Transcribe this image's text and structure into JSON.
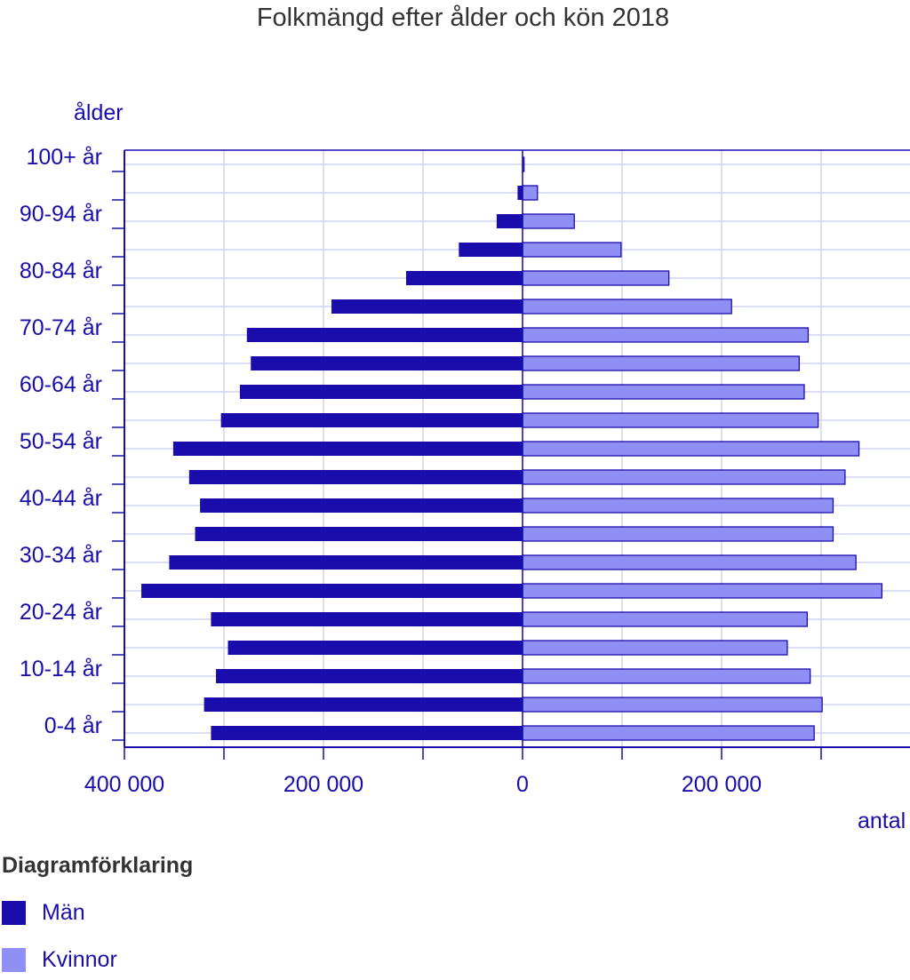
{
  "chart_data": {
    "type": "bar",
    "orientation": "horizontal-population-pyramid",
    "title": "Folkmängd efter ålder och kön 2018",
    "ylabel": "ålder",
    "xlabel": "antal",
    "categories": [
      "0-4 år",
      "5-9 år",
      "10-14 år",
      "15-19 år",
      "20-24 år",
      "25-29 år",
      "30-34 år",
      "35-39 år",
      "40-44 år",
      "45-49 år",
      "50-54 år",
      "55-59 år",
      "60-64 år",
      "65-69 år",
      "70-74 år",
      "75-79 år",
      "80-84 år",
      "85-89 år",
      "90-94 år",
      "95-99 år",
      "100+ år"
    ],
    "category_labels_shown": [
      "0-4 år",
      "10-14 år",
      "20-24 år",
      "30-34 år",
      "40-44 år",
      "50-54 år",
      "60-64 år",
      "70-74 år",
      "80-84 år",
      "90-94 år",
      "100+ år"
    ],
    "series": [
      {
        "name": "Män",
        "color": "#1a0dab",
        "values": [
          313000,
          320000,
          308000,
          296000,
          313000,
          383000,
          355000,
          329000,
          324000,
          335000,
          351000,
          303000,
          284000,
          273000,
          277000,
          192000,
          117000,
          64000,
          26000,
          5000,
          300
        ]
      },
      {
        "name": "Kvinnor",
        "color": "#8f8ff5",
        "values": [
          293000,
          301000,
          289000,
          266000,
          286000,
          361000,
          335000,
          312000,
          312000,
          324000,
          338000,
          297000,
          283000,
          278000,
          287000,
          210000,
          147000,
          99000,
          52000,
          15000,
          1500
        ]
      }
    ],
    "xlim": [
      -400000,
      390000
    ],
    "x_ticks": [
      -400000,
      -300000,
      -200000,
      -100000,
      0,
      100000,
      200000,
      300000
    ],
    "x_tick_labels": [
      {
        "value": -400000,
        "label": "400 000"
      },
      {
        "value": -200000,
        "label": "200 000"
      },
      {
        "value": 0,
        "label": "0"
      },
      {
        "value": 200000,
        "label": "200 000"
      }
    ],
    "grid": true,
    "legend_title": "Diagramförklaring",
    "legend_position": "bottom-left"
  }
}
